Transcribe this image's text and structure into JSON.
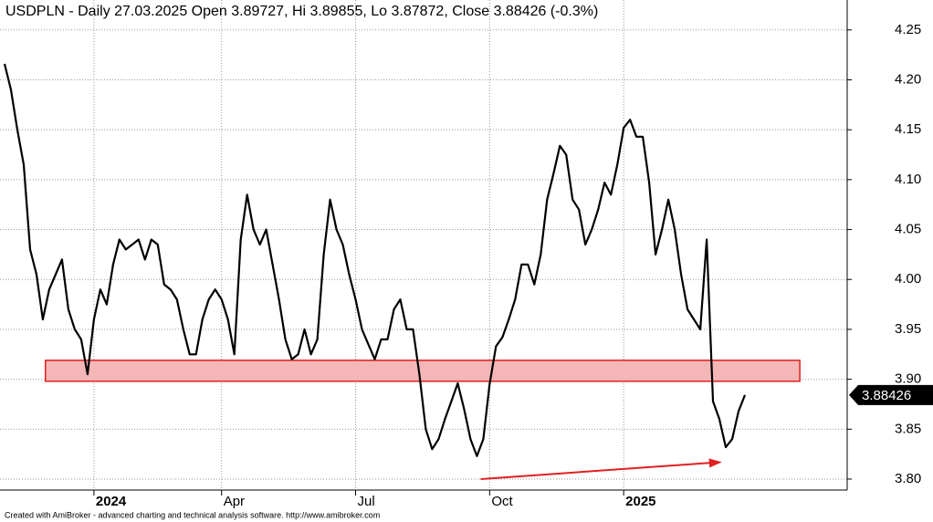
{
  "chart_data": {
    "type": "line",
    "title": "USDPLN - Daily 27.03.2025 Open 3.89727, Hi 3.89855, Lo 3.87872, Close 3.88426 (-0.3%)",
    "footer": "Created with AmiBroker - advanced charting and technical analysis software. http://www.amibroker.com",
    "color": "#000000",
    "grid": true,
    "ylim": [
      3.789,
      4.28
    ],
    "yticks": [
      {
        "value": 3.8,
        "label": "3.80"
      },
      {
        "value": 3.85,
        "label": "3.85"
      },
      {
        "value": 3.9,
        "label": "3.90"
      },
      {
        "value": 3.95,
        "label": "3.95"
      },
      {
        "value": 4.0,
        "label": "4.00"
      },
      {
        "value": 4.05,
        "label": "4.05"
      },
      {
        "value": 4.1,
        "label": "4.10"
      },
      {
        "value": 4.15,
        "label": "4.15"
      },
      {
        "value": 4.2,
        "label": "4.20"
      },
      {
        "value": 4.25,
        "label": "4.25"
      }
    ],
    "categories": [
      null,
      null,
      null,
      null,
      null,
      null,
      null,
      null,
      null,
      null,
      null,
      null,
      null,
      null,
      "2024",
      null,
      null,
      null,
      null,
      null,
      null,
      null,
      null,
      null,
      null,
      null,
      null,
      null,
      null,
      null,
      null,
      null,
      null,
      null,
      "Apr",
      null,
      null,
      null,
      null,
      null,
      null,
      null,
      null,
      null,
      null,
      null,
      null,
      null,
      null,
      null,
      null,
      null,
      null,
      null,
      null,
      "Jul",
      null,
      null,
      null,
      null,
      null,
      null,
      null,
      null,
      null,
      null,
      null,
      null,
      null,
      null,
      null,
      null,
      null,
      null,
      null,
      null,
      "Oct",
      null,
      null,
      null,
      null,
      null,
      null,
      null,
      null,
      null,
      null,
      null,
      null,
      null,
      null,
      null,
      null,
      null,
      null,
      null,
      null,
      "2025",
      null,
      null,
      null,
      null,
      null,
      null,
      null,
      null,
      null,
      null,
      null,
      null,
      null,
      null,
      null,
      null,
      null,
      null,
      null
    ],
    "values": [
      4.216,
      4.19,
      4.15,
      4.115,
      4.03,
      4.005,
      3.96,
      3.99,
      4.005,
      4.02,
      3.97,
      3.95,
      3.94,
      3.905,
      3.96,
      3.99,
      3.975,
      4.015,
      4.04,
      4.03,
      4.035,
      4.04,
      4.02,
      4.04,
      4.035,
      3.995,
      3.99,
      3.98,
      3.95,
      3.925,
      3.925,
      3.96,
      3.98,
      3.99,
      3.98,
      3.96,
      3.925,
      4.04,
      4.085,
      4.05,
      4.035,
      4.05,
      4.015,
      3.98,
      3.94,
      3.92,
      3.925,
      3.95,
      3.925,
      3.94,
      4.025,
      4.08,
      4.05,
      4.035,
      4.005,
      3.98,
      3.95,
      3.935,
      3.92,
      3.94,
      3.94,
      3.97,
      3.98,
      3.95,
      3.95,
      3.905,
      3.85,
      3.83,
      3.84,
      3.86,
      3.878,
      3.896,
      3.87,
      3.84,
      3.823,
      3.84,
      3.895,
      3.933,
      3.942,
      3.96,
      3.98,
      4.015,
      4.015,
      3.995,
      4.025,
      4.08,
      4.106,
      4.134,
      4.125,
      4.08,
      4.07,
      4.035,
      4.05,
      4.07,
      4.097,
      4.085,
      4.115,
      4.152,
      4.16,
      4.143,
      4.143,
      4.097,
      4.025,
      4.05,
      4.08,
      4.05,
      4.005,
      3.97,
      3.96,
      3.95,
      4.04,
      3.878,
      3.86,
      3.832,
      3.84,
      3.868,
      3.88426
    ],
    "last_value": 3.88426,
    "zone": {
      "from": 6.4,
      "to": 124.6,
      "low": 3.898,
      "high": 3.919,
      "color": "#f4b6b6",
      "border": "#e02020"
    },
    "arrow": {
      "from": [
        74.6,
        3.8
      ],
      "to": [
        112.4,
        3.817
      ],
      "color": "#e02020"
    }
  }
}
